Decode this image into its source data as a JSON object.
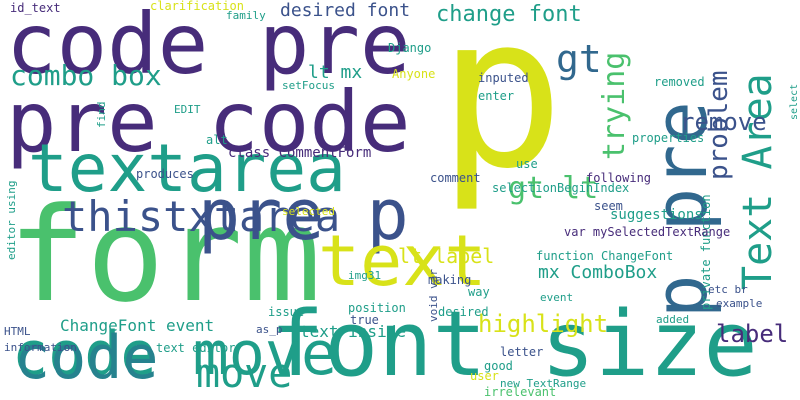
{
  "colors": {
    "background": "#ffffff",
    "purple": "#472c7a",
    "teal": "#1f9e89",
    "lime": "#d8e219",
    "green": "#4ac16d",
    "blue": "#3b528b",
    "slate": "#31688e",
    "cyan": "#26828e"
  },
  "words": [
    {
      "text": "p",
      "color": "lime"
    },
    {
      "text": "form",
      "color": "green"
    },
    {
      "text": "code pre",
      "color": "purple"
    },
    {
      "text": "pre code",
      "color": "purple"
    },
    {
      "text": "font size",
      "color": "teal"
    },
    {
      "text": "pre p",
      "color": "blue"
    },
    {
      "text": "text",
      "color": "lime"
    },
    {
      "text": "textarea",
      "color": "teal"
    },
    {
      "text": "p pre",
      "color": "slate"
    },
    {
      "text": "code move",
      "color": "teal"
    },
    {
      "text": "Text Area",
      "color": "teal"
    },
    {
      "text": "thistxtarea",
      "color": "blue"
    },
    {
      "text": "code",
      "color": "cyan"
    },
    {
      "text": "combo box",
      "color": "teal"
    },
    {
      "text": "gt lt",
      "color": "green"
    },
    {
      "text": "gt",
      "color": "slate"
    },
    {
      "text": "trying",
      "color": "green"
    },
    {
      "text": "problem",
      "color": "blue"
    },
    {
      "text": "remove",
      "color": "blue"
    },
    {
      "text": "change font",
      "color": "teal"
    },
    {
      "text": "highlight",
      "color": "lime"
    },
    {
      "text": "label",
      "color": "purple"
    },
    {
      "text": "move",
      "color": "teal"
    },
    {
      "text": "desired font",
      "color": "blue"
    },
    {
      "text": "lt mx",
      "color": "teal"
    },
    {
      "text": "lt label",
      "color": "lime"
    },
    {
      "text": "mx ComboBox",
      "color": "teal"
    },
    {
      "text": "ChangeFont event",
      "color": "teal"
    },
    {
      "text": "text inside",
      "color": "teal"
    },
    {
      "text": "class CommentForm",
      "color": "purple"
    },
    {
      "text": "suggestions",
      "color": "teal"
    },
    {
      "text": "id_text",
      "color": "purple"
    },
    {
      "text": "clarification",
      "color": "lime"
    },
    {
      "text": "family",
      "color": "teal"
    },
    {
      "text": "Django",
      "color": "teal"
    },
    {
      "text": "Anyone",
      "color": "lime"
    },
    {
      "text": "inputed",
      "color": "blue"
    },
    {
      "text": "enter",
      "color": "teal"
    },
    {
      "text": "removed",
      "color": "teal"
    },
    {
      "text": "properties",
      "color": "teal"
    },
    {
      "text": "following",
      "color": "purple"
    },
    {
      "text": "private function",
      "color": "teal"
    },
    {
      "text": "selectionBeginIndex",
      "color": "teal"
    },
    {
      "text": "comment",
      "color": "blue"
    },
    {
      "text": "use",
      "color": "teal"
    },
    {
      "text": "seem",
      "color": "blue"
    },
    {
      "text": "var mySelectedTextRange",
      "color": "purple"
    },
    {
      "text": "function ChangeFont",
      "color": "teal"
    },
    {
      "text": "making",
      "color": "blue"
    },
    {
      "text": "way",
      "color": "teal"
    },
    {
      "text": "etc br",
      "color": "blue"
    },
    {
      "text": "example",
      "color": "blue"
    },
    {
      "text": "added",
      "color": "teal"
    },
    {
      "text": "event",
      "color": "teal"
    },
    {
      "text": "desired",
      "color": "teal"
    },
    {
      "text": "position",
      "color": "teal"
    },
    {
      "text": "true",
      "color": "blue"
    },
    {
      "text": "issue",
      "color": "teal"
    },
    {
      "text": "img31",
      "color": "teal"
    },
    {
      "text": "void var",
      "color": "blue"
    },
    {
      "text": "letter",
      "color": "blue"
    },
    {
      "text": "good",
      "color": "teal"
    },
    {
      "text": "user",
      "color": "lime"
    },
    {
      "text": "new TextRange",
      "color": "teal"
    },
    {
      "text": "irrelevant",
      "color": "green"
    },
    {
      "text": "as_p",
      "color": "blue"
    },
    {
      "text": "HTML",
      "color": "blue"
    },
    {
      "text": "information",
      "color": "blue"
    },
    {
      "text": "text editor",
      "color": "teal"
    },
    {
      "text": "alt",
      "color": "teal"
    },
    {
      "text": "produces",
      "color": "blue"
    },
    {
      "text": "EDIT",
      "color": "teal"
    },
    {
      "text": "setFocus",
      "color": "teal"
    },
    {
      "text": "find",
      "color": "teal"
    },
    {
      "text": "editor using",
      "color": "teal"
    },
    {
      "text": "selected",
      "color": "lime"
    },
    {
      "text": "select",
      "color": "teal"
    }
  ]
}
